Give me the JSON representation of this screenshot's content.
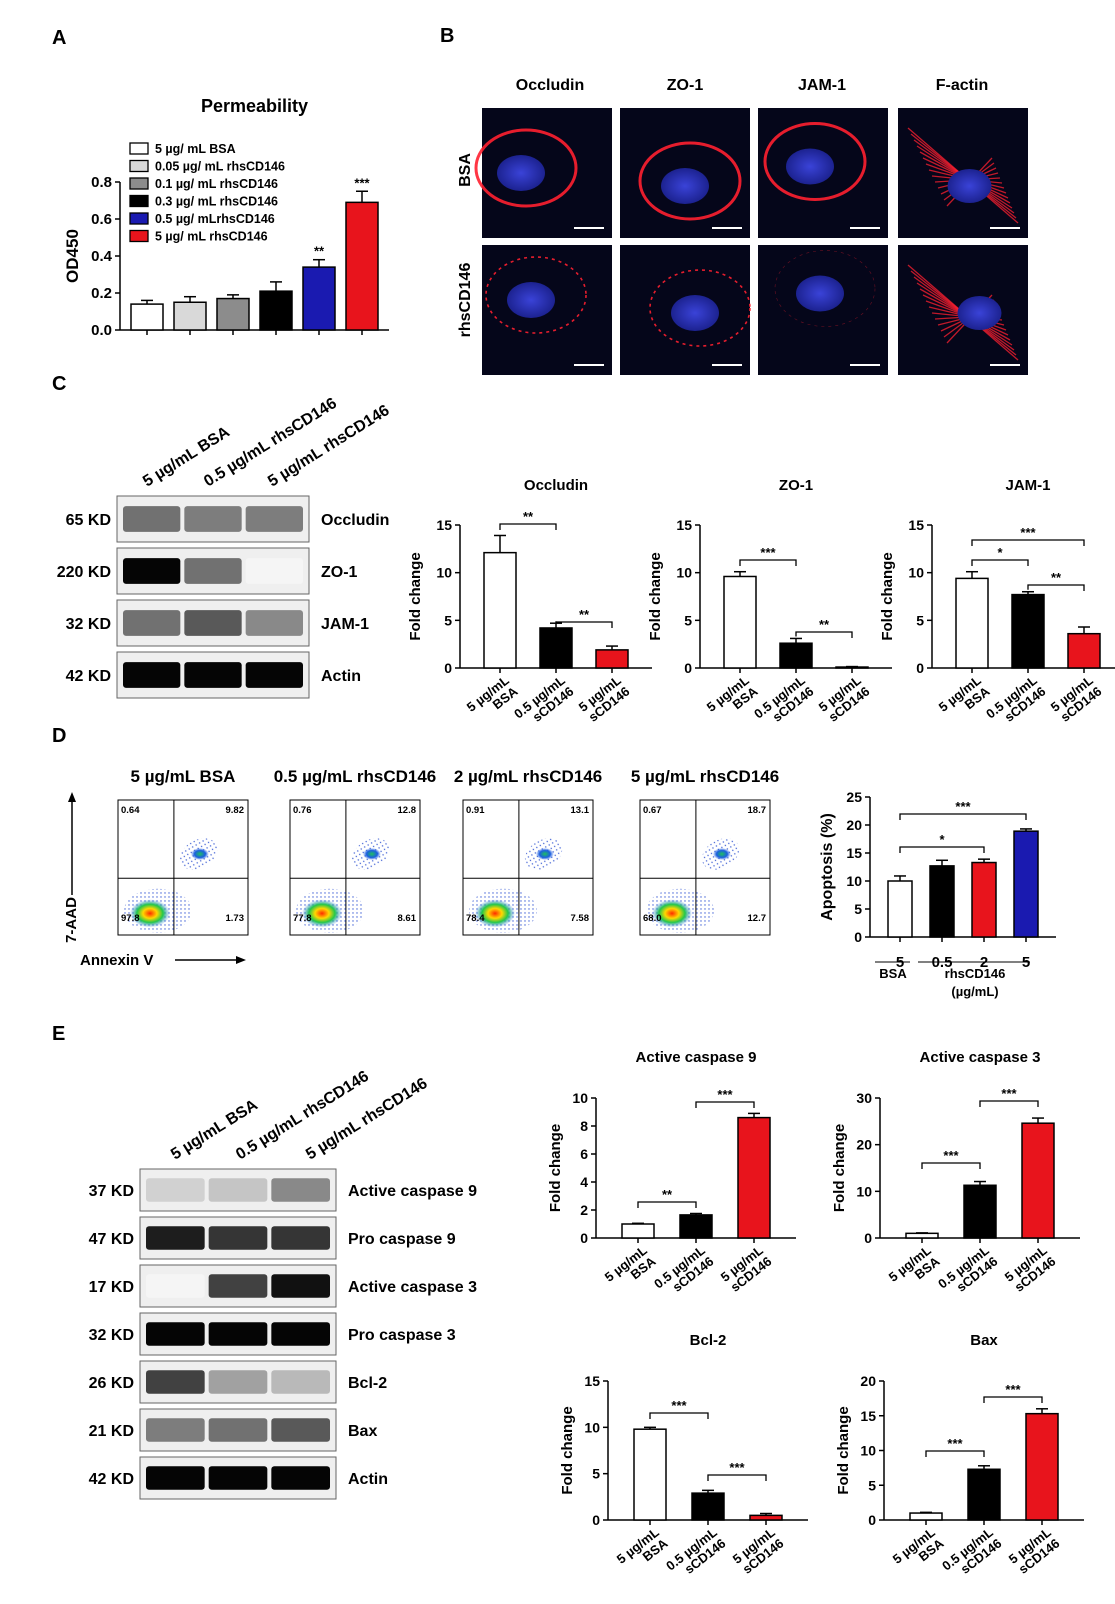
{
  "panel_letters": {
    "A": "A",
    "B": "B",
    "C": "C",
    "D": "D",
    "E": "E"
  },
  "panelA": {
    "legend": [
      "5 µg/ mL BSA",
      "0.05 µg/ mL rhsCD146",
      "0.1 µg/ mL rhsCD146",
      "0.3 µg/ mL rhsCD146",
      "0.5 µg/ mLrhsCD146",
      "5 µg/ mL rhsCD146"
    ],
    "colors": [
      "#ffffff",
      "#d9d9d9",
      "#8c8c8c",
      "#000000",
      "#1a1ab0",
      "#e8141c"
    ]
  },
  "panelB": {
    "columns": [
      "Occludin",
      "ZO-1",
      "JAM-1",
      "F-actin"
    ],
    "rows": [
      "BSA",
      "rhsCD146"
    ]
  },
  "panelC": {
    "lane_labels": [
      "5 µg/mL BSA",
      "0.5 µg/mL rhsCD146",
      "5 µg/mL rhsCD146"
    ],
    "blots": [
      {
        "kd": "65 KD",
        "name": "Occludin",
        "intensity": [
          0.55,
          0.5,
          0.5
        ]
      },
      {
        "kd": "220 KD",
        "name": "ZO-1",
        "intensity": [
          1.0,
          0.55,
          0.0
        ]
      },
      {
        "kd": "32 KD",
        "name": "JAM-1",
        "intensity": [
          0.55,
          0.65,
          0.45
        ]
      },
      {
        "kd": "42 KD",
        "name": "Actin",
        "intensity": [
          1.0,
          1.0,
          1.0
        ]
      }
    ],
    "bar_xlabels": [
      [
        "5 µg/mL",
        "BSA"
      ],
      [
        "0.5 µg/mL",
        "sCD146"
      ],
      [
        "5 µg/mL",
        "sCD146"
      ]
    ]
  },
  "panelD": {
    "flow_titles": [
      "5 µg/mL BSA",
      "0.5 µg/mL rhsCD146",
      "2 µg/mL rhsCD146",
      "5 µg/mL rhsCD146"
    ],
    "quadrants": [
      {
        "ul": "0.64",
        "ur": "9.82",
        "ll": "97.8",
        "lr": "1.73"
      },
      {
        "ul": "0.76",
        "ur": "12.8",
        "ll": "77.8",
        "lr": "8.61"
      },
      {
        "ul": "0.91",
        "ur": "13.1",
        "ll": "78.4",
        "lr": "7.58"
      },
      {
        "ul": "0.67",
        "ur": "18.7",
        "ll": "68.0",
        "lr": "12.7"
      }
    ],
    "y_axis_label": "7-AAD",
    "x_axis_label": "Annexin V",
    "group_bsa": "BSA",
    "group_rhs": "rhsCD146",
    "group_unit": "(µg/mL)"
  },
  "panelE": {
    "lane_labels": [
      "5 µg/mL BSA",
      "0.5 µg/mL rhsCD146",
      "5 µg/mL rhsCD146"
    ],
    "blots": [
      {
        "kd": "37 KD",
        "name": "Active caspase 9",
        "intensity": [
          0.15,
          0.2,
          0.45
        ]
      },
      {
        "kd": "47 KD",
        "name": "Pro caspase 9",
        "intensity": [
          0.9,
          0.8,
          0.8
        ]
      },
      {
        "kd": "17 KD",
        "name": "Active caspase 3",
        "intensity": [
          0.0,
          0.75,
          0.95
        ]
      },
      {
        "kd": "32 KD",
        "name": "Pro caspase 3",
        "intensity": [
          1.0,
          1.0,
          1.0
        ]
      },
      {
        "kd": "26 KD",
        "name": "Bcl-2",
        "intensity": [
          0.75,
          0.35,
          0.25
        ]
      },
      {
        "kd": "21 KD",
        "name": "Bax",
        "intensity": [
          0.5,
          0.55,
          0.65
        ]
      },
      {
        "kd": "42 KD",
        "name": "Actin",
        "intensity": [
          1.0,
          1.0,
          1.0
        ]
      }
    ],
    "bar_xlabels": [
      [
        "5 µg/mL",
        "BSA"
      ],
      [
        "0.5 µg/mL",
        "sCD146"
      ],
      [
        "5 µg/mL",
        "sCD146"
      ]
    ]
  },
  "chart_data": [
    {
      "id": "A",
      "type": "bar",
      "title": "Permeability",
      "ylabel": "OD450",
      "ylim": [
        0,
        0.8
      ],
      "yticks": [
        "0.0",
        "0.2",
        "0.4",
        "0.6",
        "0.8"
      ],
      "categories": [
        "5 µg/ mL BSA",
        "0.05 µg/ mL rhsCD146",
        "0.1 µg/ mL rhsCD146",
        "0.3 µg/ mL rhsCD146",
        "0.5 µg/ mLrhsCD146",
        "5 µg/ mL rhsCD146"
      ],
      "values": [
        0.14,
        0.15,
        0.17,
        0.21,
        0.34,
        0.69
      ],
      "errors": [
        0.02,
        0.03,
        0.02,
        0.05,
        0.04,
        0.06
      ],
      "stars": [
        "",
        "",
        "",
        "",
        "**",
        "***"
      ],
      "legend_placement": "top-left"
    },
    {
      "id": "C1",
      "type": "bar",
      "title": "Occludin",
      "ylabel": "Fold change",
      "ylim": [
        0,
        15
      ],
      "yticks": [
        "0",
        "5",
        "10",
        "15"
      ],
      "values": [
        12.1,
        4.2,
        1.9
      ],
      "errors": [
        1.8,
        0.5,
        0.4
      ],
      "brackets": [
        {
          "from": 0,
          "to": 1,
          "label": "**"
        },
        {
          "from": 1,
          "to": 2,
          "label": "**"
        }
      ]
    },
    {
      "id": "C2",
      "type": "bar",
      "title": "ZO-1",
      "ylabel": "Fold change",
      "ylim": [
        0,
        15
      ],
      "yticks": [
        "0",
        "5",
        "10",
        "15"
      ],
      "values": [
        9.6,
        2.6,
        0.1
      ],
      "errors": [
        0.5,
        0.5,
        0.05
      ],
      "brackets": [
        {
          "from": 0,
          "to": 1,
          "label": "***"
        },
        {
          "from": 1,
          "to": 2,
          "label": "**"
        }
      ]
    },
    {
      "id": "C3",
      "type": "bar",
      "title": "JAM-1",
      "ylabel": "Fold change",
      "ylim": [
        0,
        15
      ],
      "yticks": [
        "0",
        "5",
        "10",
        "15"
      ],
      "values": [
        9.4,
        7.7,
        3.6
      ],
      "errors": [
        0.7,
        0.3,
        0.7
      ],
      "brackets": [
        {
          "from": 0,
          "to": 1,
          "label": "*"
        },
        {
          "from": 1,
          "to": 2,
          "label": "**"
        },
        {
          "from": 0,
          "to": 2,
          "label": "***"
        }
      ]
    },
    {
      "id": "D",
      "type": "bar",
      "title": "",
      "ylabel": "Apoptosis (%)",
      "ylim": [
        0,
        25
      ],
      "yticks": [
        "0",
        "5",
        "10",
        "15",
        "20",
        "25"
      ],
      "categories": [
        "5",
        "0.5",
        "2",
        "5"
      ],
      "values": [
        10.0,
        12.7,
        13.3,
        18.9
      ],
      "errors": [
        0.9,
        1.0,
        0.6,
        0.4
      ],
      "brackets": [
        {
          "from": 0,
          "to": 2,
          "label": "*"
        },
        {
          "from": 0,
          "to": 3,
          "label": "***"
        }
      ]
    },
    {
      "id": "E1",
      "type": "bar",
      "title": "Active caspase 9",
      "ylabel": "Fold change",
      "ylim": [
        0,
        10
      ],
      "yticks": [
        "0",
        "2",
        "4",
        "6",
        "8",
        "10"
      ],
      "values": [
        1.0,
        1.65,
        8.6
      ],
      "errors": [
        0.05,
        0.1,
        0.3
      ],
      "brackets": [
        {
          "from": 0,
          "to": 1,
          "label": "**"
        },
        {
          "from": 1,
          "to": 2,
          "label": "***"
        }
      ]
    },
    {
      "id": "E2",
      "type": "bar",
      "title": "Active caspase 3",
      "ylabel": "Fold change",
      "ylim": [
        0,
        30
      ],
      "yticks": [
        "0",
        "10",
        "20",
        "30"
      ],
      "values": [
        1.0,
        11.3,
        24.6
      ],
      "errors": [
        0.1,
        0.8,
        1.1
      ],
      "brackets": [
        {
          "from": 0,
          "to": 1,
          "label": "***"
        },
        {
          "from": 1,
          "to": 2,
          "label": "***"
        }
      ]
    },
    {
      "id": "E3",
      "type": "bar",
      "title": "Bcl-2",
      "ylabel": "Fold change",
      "ylim": [
        0,
        15
      ],
      "yticks": [
        "0",
        "5",
        "10",
        "15"
      ],
      "values": [
        9.8,
        2.9,
        0.5
      ],
      "errors": [
        0.2,
        0.3,
        0.2
      ],
      "brackets": [
        {
          "from": 0,
          "to": 1,
          "label": "***"
        },
        {
          "from": 1,
          "to": 2,
          "label": "***"
        }
      ]
    },
    {
      "id": "E4",
      "type": "bar",
      "title": "Bax",
      "ylabel": "Fold change",
      "ylim": [
        0,
        20
      ],
      "yticks": [
        "0",
        "5",
        "10",
        "15",
        "20"
      ],
      "values": [
        1.0,
        7.3,
        15.3
      ],
      "errors": [
        0.1,
        0.5,
        0.7
      ],
      "brackets": [
        {
          "from": 0,
          "to": 1,
          "label": "***"
        },
        {
          "from": 1,
          "to": 2,
          "label": "***"
        }
      ]
    }
  ]
}
